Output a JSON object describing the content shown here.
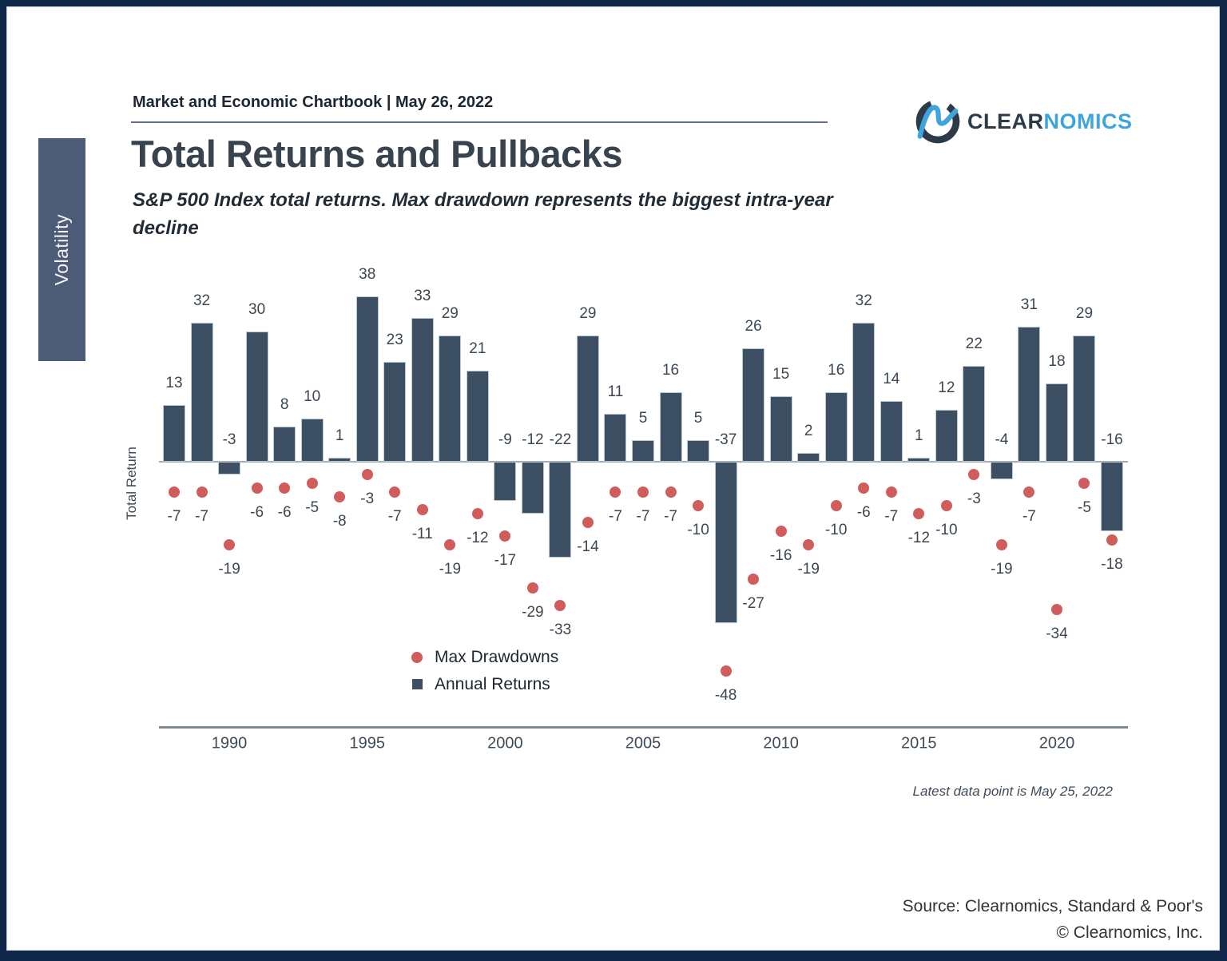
{
  "header": {
    "chartbook_title": "Market and Economic Chartbook | May 26, 2022",
    "title": "Total Returns and Pullbacks",
    "subtitle": "S&P 500 Index total returns. Max drawdown represents the biggest intra-year\ndecline",
    "logo": {
      "text_dark": "CLEAR",
      "text_blue": "NOMICS"
    }
  },
  "sidebar": {
    "tab_label": "Volatility"
  },
  "chart_data": {
    "type": "bar",
    "title": "Total Returns and Pullbacks",
    "ylabel": "Total Return",
    "xlabel": "",
    "grid": false,
    "legend_position": "inside-bottom-left",
    "x_tick_years": [
      1990,
      1995,
      2000,
      2005,
      2010,
      2015,
      2020
    ],
    "years": [
      1988,
      1989,
      1990,
      1991,
      1992,
      1993,
      1994,
      1995,
      1996,
      1997,
      1998,
      1999,
      2000,
      2001,
      2002,
      2003,
      2004,
      2005,
      2006,
      2007,
      2008,
      2009,
      2010,
      2011,
      2012,
      2013,
      2014,
      2015,
      2016,
      2017,
      2018,
      2019,
      2020,
      2021,
      2022
    ],
    "series": [
      {
        "name": "Annual Returns",
        "type": "bar",
        "color": "#3d4f62",
        "values": [
          13,
          32,
          -3,
          30,
          8,
          10,
          1,
          38,
          23,
          33,
          29,
          21,
          -9,
          -12,
          -22,
          29,
          11,
          5,
          16,
          5,
          -37,
          26,
          15,
          2,
          16,
          32,
          14,
          1,
          12,
          22,
          -4,
          31,
          18,
          29,
          -16
        ]
      },
      {
        "name": "Max Drawdowns",
        "type": "scatter",
        "color": "#d15c5c",
        "values": [
          -7,
          -7,
          -19,
          -6,
          -6,
          -5,
          -8,
          -3,
          -7,
          -11,
          -19,
          -12,
          -17,
          -29,
          -33,
          -14,
          -7,
          -7,
          -7,
          -10,
          -48,
          -27,
          -16,
          -19,
          -10,
          -6,
          -7,
          -12,
          -10,
          -3,
          -19,
          -7,
          -34,
          -5,
          -18
        ]
      }
    ],
    "note": "Latest data point is May 25, 2022"
  },
  "legend": {
    "max_drawdowns": "Max Drawdowns",
    "annual_returns": "Annual Returns"
  },
  "footer": {
    "source_line1": "Source: Clearnomics, Standard & Poor's",
    "source_line2": "© Clearnomics, Inc."
  },
  "colors": {
    "bar": "#3d4f62",
    "dot": "#d15c5c",
    "frame": "#10294b",
    "tab_bg": "#4d5c76",
    "logo_blue": "#3fa4dc"
  }
}
